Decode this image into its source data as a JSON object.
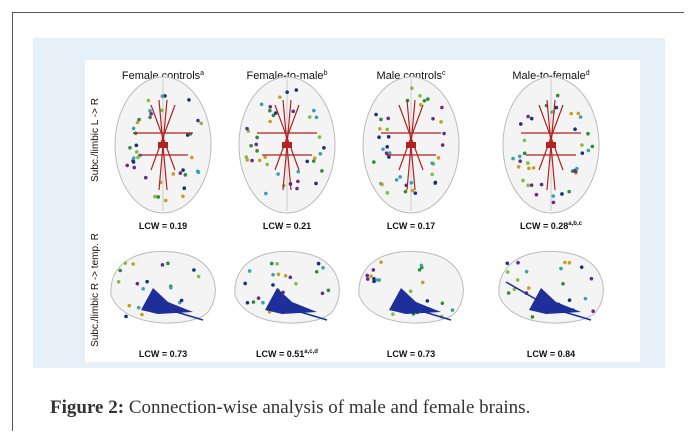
{
  "figure": {
    "columns": [
      {
        "label": "Female controls",
        "sup": "a"
      },
      {
        "label": "Female-to-male",
        "sup": "b"
      },
      {
        "label": "Male controls",
        "sup": "c"
      },
      {
        "label": "Male-to-female",
        "sup": "d"
      }
    ],
    "rows": [
      {
        "label": "Subc./limbic L -> R",
        "cells": [
          {
            "lcw": "LCW = 0.19"
          },
          {
            "lcw": "LCW = 0.21"
          },
          {
            "lcw": "LCW = 0.17"
          },
          {
            "lcw": "LCW = 0.28",
            "sup": "a,b,c"
          }
        ]
      },
      {
        "label": "Subc./limbic R -> temp. R",
        "cells": [
          {
            "lcw": "LCW = 0.73"
          },
          {
            "lcw": "LCW = 0.51",
            "sup": "a,c,d"
          },
          {
            "lcw": "LCW = 0.73"
          },
          {
            "lcw": "LCW = 0.84"
          }
        ]
      }
    ]
  },
  "caption": {
    "label": "Figure 2:",
    "text": "Connection-wise analysis of male and female brains."
  }
}
